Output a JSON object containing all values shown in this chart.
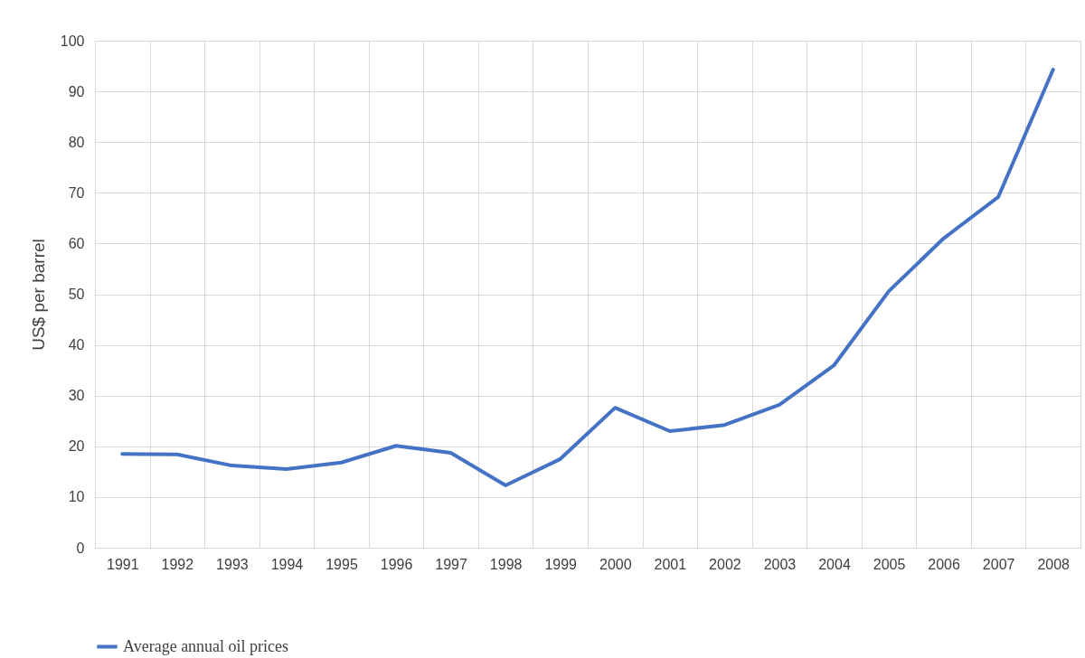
{
  "chart_data": {
    "type": "line",
    "ylabel": "US$ per barrel",
    "categories": [
      "1991",
      "1992",
      "1993",
      "1994",
      "1995",
      "1996",
      "1997",
      "1998",
      "1999",
      "2000",
      "2001",
      "2002",
      "2003",
      "2004",
      "2005",
      "2006",
      "2007",
      "2008"
    ],
    "series": [
      {
        "name": "Average annual oil prices",
        "color": "#4472c4",
        "values": [
          18.5,
          18.4,
          16.2,
          15.5,
          16.8,
          20.1,
          18.7,
          12.3,
          17.5,
          27.6,
          23.0,
          24.2,
          28.2,
          36.0,
          50.6,
          61.0,
          69.2,
          94.3
        ]
      }
    ],
    "ylim": [
      0,
      100
    ],
    "yticks": [
      0,
      10,
      20,
      30,
      40,
      50,
      60,
      70,
      80,
      90,
      100
    ],
    "grid": true,
    "legend": "bottom",
    "marker": "none",
    "line_style": "solid"
  }
}
